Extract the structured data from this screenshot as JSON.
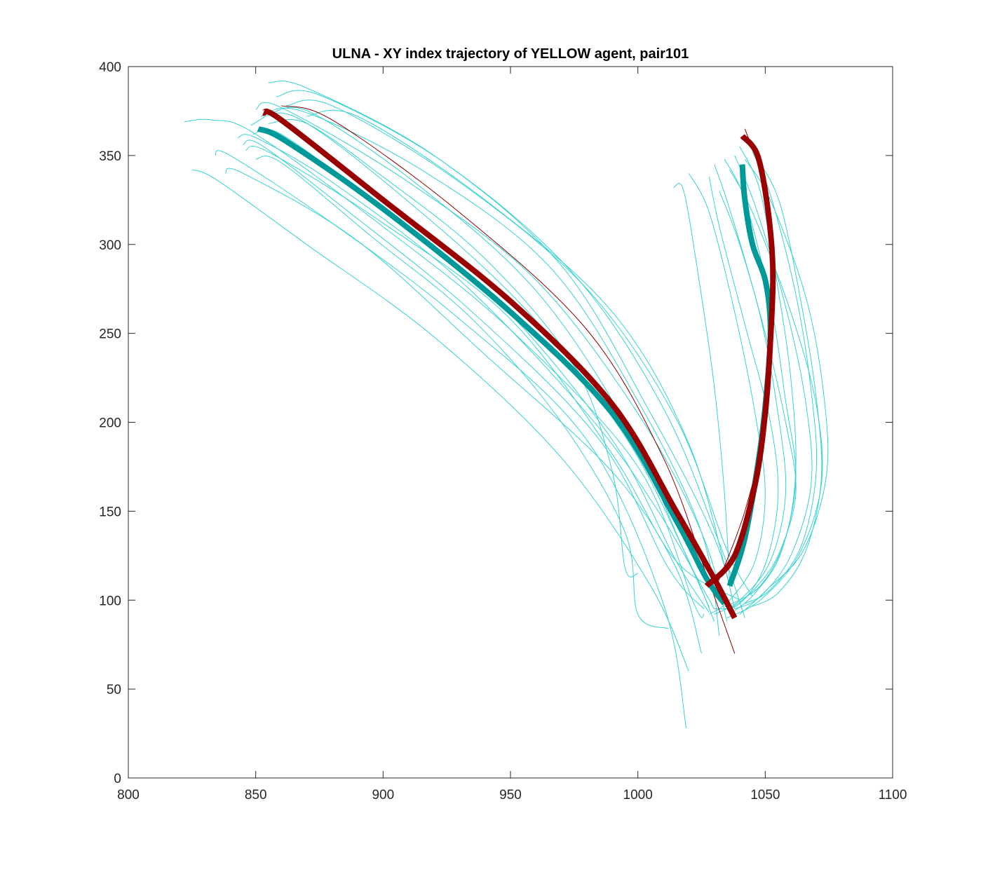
{
  "chart_data": {
    "type": "line",
    "title": "ULNA - XY index trajectory of YELLOW agent, pair101",
    "xlabel": "",
    "ylabel": "",
    "xlim": [
      800,
      1100
    ],
    "ylim": [
      0,
      400
    ],
    "xticks": [
      800,
      850,
      900,
      950,
      1000,
      1050,
      1100
    ],
    "yticks": [
      0,
      50,
      100,
      150,
      200,
      250,
      300,
      350,
      400
    ],
    "grid": false,
    "legend": "none",
    "colors": {
      "thin_cyan": "#38d1d1",
      "thin_red": "#8b0000",
      "mean_teal": "#009999",
      "mean_red": "#990000",
      "axis": "#262626"
    },
    "series": [
      {
        "style": "thin_cyan",
        "x": [
          822,
          833,
          850,
          900,
          950,
          1000,
          1022,
          1026
        ],
        "y": [
          369,
          370,
          362,
          310,
          252,
          175,
          98,
          92
        ]
      },
      {
        "style": "thin_cyan",
        "x": [
          825,
          835,
          870,
          920,
          970,
          1005,
          1020
        ],
        "y": [
          342,
          336,
          300,
          248,
          180,
          108,
          60
        ]
      },
      {
        "style": "thin_cyan",
        "x": [
          834,
          840,
          880,
          930,
          980,
          1010,
          1019
        ],
        "y": [
          350,
          350,
          312,
          258,
          190,
          98,
          28
        ]
      },
      {
        "style": "thin_cyan",
        "x": [
          838,
          845,
          890,
          940,
          990,
          1015,
          1025
        ],
        "y": [
          340,
          340,
          302,
          238,
          172,
          118,
          70
        ]
      },
      {
        "style": "thin_cyan",
        "x": [
          843,
          850,
          880,
          930,
          980,
          1008,
          1030
        ],
        "y": [
          360,
          360,
          335,
          280,
          205,
          150,
          95
        ]
      },
      {
        "style": "thin_cyan",
        "x": [
          846,
          855,
          900,
          950,
          990,
          1015,
          1040
        ],
        "y": [
          353,
          352,
          312,
          258,
          182,
          122,
          100
        ]
      },
      {
        "style": "thin_cyan",
        "x": [
          850,
          860,
          910,
          960,
          1000,
          1025,
          1035
        ],
        "y": [
          376,
          377,
          335,
          280,
          205,
          138,
          88
        ]
      },
      {
        "style": "thin_cyan",
        "x": [
          855,
          870,
          920,
          970,
          1005,
          1030,
          1038
        ],
        "y": [
          391,
          388,
          350,
          288,
          205,
          135,
          95
        ]
      },
      {
        "style": "thin_cyan",
        "x": [
          852,
          868,
          915,
          965,
          1000,
          1025,
          1032
        ],
        "y": [
          372,
          375,
          342,
          288,
          212,
          138,
          80
        ]
      },
      {
        "style": "thin_cyan",
        "x": [
          848,
          865,
          905,
          955,
          995,
          1020,
          1030
        ],
        "y": [
          367,
          372,
          330,
          265,
          192,
          122,
          88
        ]
      },
      {
        "style": "thin_cyan",
        "x": [
          858,
          875,
          925,
          975,
          1010,
          1032,
          1042
        ],
        "y": [
          383,
          384,
          345,
          283,
          208,
          132,
          90
        ]
      },
      {
        "style": "thin_cyan",
        "x": [
          849,
          860,
          895,
          945,
          990,
          1015,
          1028
        ],
        "y": [
          362,
          362,
          325,
          268,
          190,
          122,
          93
        ]
      },
      {
        "style": "thin_cyan",
        "x": [
          845,
          852,
          885,
          935,
          985,
          1012,
          1026
        ],
        "y": [
          356,
          356,
          320,
          262,
          190,
          118,
          95
        ]
      },
      {
        "style": "thin_cyan",
        "x": [
          862,
          880,
          930,
          980,
          1015,
          1035,
          1045
        ],
        "y": [
          378,
          378,
          335,
          275,
          202,
          128,
          102
        ]
      },
      {
        "style": "thin_cyan",
        "x": [
          870,
          890,
          940,
          990,
          1020,
          1036
        ],
        "y": [
          372,
          372,
          325,
          262,
          188,
          108
        ]
      },
      {
        "style": "thin_cyan",
        "x": [
          855,
          870,
          900,
          940,
          975,
          990,
          995,
          1000
        ],
        "y": [
          368,
          368,
          338,
          292,
          232,
          172,
          118,
          115
        ]
      },
      {
        "style": "thin_cyan",
        "x": [
          850,
          860,
          895,
          935,
          970,
          995,
          1000,
          1012
        ],
        "y": [
          348,
          346,
          305,
          258,
          200,
          138,
          92,
          84
        ]
      },
      {
        "style": "thin_cyan",
        "x": [
          856,
          872,
          915,
          960,
          995,
          1018,
          1028
        ],
        "y": [
          374,
          374,
          332,
          274,
          200,
          128,
          96
        ]
      },
      {
        "style": "thin_cyan",
        "x": [
          1032,
          1040,
          1050,
          1058,
          1062,
          1055,
          1045,
          1036
        ],
        "y": [
          330,
          300,
          250,
          200,
          160,
          125,
          105,
          95
        ]
      },
      {
        "style": "thin_cyan",
        "x": [
          1030,
          1036,
          1048,
          1055,
          1058,
          1052,
          1040,
          1030
        ],
        "y": [
          345,
          320,
          260,
          205,
          160,
          122,
          100,
          92
        ]
      },
      {
        "style": "thin_cyan",
        "x": [
          1038,
          1046,
          1058,
          1066,
          1068,
          1060,
          1048,
          1038
        ],
        "y": [
          350,
          322,
          265,
          210,
          165,
          125,
          102,
          95
        ]
      },
      {
        "style": "thin_cyan",
        "x": [
          1042,
          1052,
          1066,
          1073,
          1074,
          1065,
          1050,
          1040
        ],
        "y": [
          348,
          325,
          270,
          215,
          170,
          128,
          105,
          92
        ]
      },
      {
        "style": "thin_cyan",
        "x": [
          1036,
          1045,
          1060,
          1070,
          1072,
          1063,
          1048,
          1035
        ],
        "y": [
          342,
          318,
          262,
          210,
          165,
          125,
          100,
          90
        ]
      },
      {
        "style": "thin_cyan",
        "x": [
          1028,
          1032,
          1042,
          1052,
          1055,
          1050,
          1040,
          1030
        ],
        "y": [
          338,
          310,
          255,
          200,
          158,
          120,
          98,
          95
        ]
      },
      {
        "style": "thin_cyan",
        "x": [
          1040,
          1048,
          1055,
          1060,
          1062,
          1058,
          1048,
          1034
        ],
        "y": [
          355,
          330,
          275,
          225,
          175,
          135,
          108,
          96
        ]
      },
      {
        "style": "thin_cyan",
        "x": [
          1045,
          1052,
          1062,
          1068,
          1070,
          1064,
          1052,
          1042
        ],
        "y": [
          352,
          328,
          272,
          218,
          172,
          130,
          106,
          98
        ]
      },
      {
        "style": "thin_cyan",
        "x": [
          1014,
          1018,
          1024,
          1030,
          1034,
          1036
        ],
        "y": [
          332,
          330,
          280,
          220,
          160,
          110
        ]
      },
      {
        "style": "thin_cyan",
        "x": [
          1020,
          1028,
          1038,
          1046,
          1050,
          1046,
          1036,
          1028
        ],
        "y": [
          340,
          318,
          262,
          205,
          160,
          122,
          100,
          92
        ]
      },
      {
        "style": "thin_cyan",
        "x": [
          1034,
          1042,
          1052,
          1058,
          1062,
          1056,
          1046,
          1038
        ],
        "y": [
          348,
          325,
          268,
          212,
          168,
          126,
          104,
          94
        ]
      },
      {
        "style": "thin_cyan",
        "x": [
          1048,
          1056,
          1064,
          1070,
          1072,
          1066,
          1055,
          1044
        ],
        "y": [
          346,
          322,
          268,
          214,
          168,
          128,
          104,
          96
        ]
      },
      {
        "style": "thin_red",
        "x": [
          860,
          880,
          930,
          980,
          1010,
          1028,
          1038
        ],
        "y": [
          378,
          370,
          318,
          252,
          180,
          110,
          70
        ]
      },
      {
        "style": "thin_red",
        "x": [
          1042,
          1048,
          1052,
          1053,
          1050,
          1042,
          1030
        ],
        "y": [
          365,
          340,
          300,
          250,
          200,
          150,
          105
        ]
      },
      {
        "style": "mean_teal",
        "x": [
          851,
          862,
          900,
          950,
          990,
          1015,
          1027,
          1034
        ],
        "y": [
          365,
          358,
          320,
          262,
          205,
          145,
          112,
          98
        ]
      },
      {
        "style": "mean_teal",
        "x": [
          1036,
          1042,
          1048,
          1051,
          1052,
          1050,
          1045,
          1042,
          1041
        ],
        "y": [
          108,
          135,
          185,
          225,
          255,
          280,
          300,
          325,
          345
        ]
      },
      {
        "style": "mean_red",
        "x": [
          853,
          860,
          900,
          950,
          990,
          1015,
          1030,
          1038
        ],
        "y": [
          374,
          370,
          325,
          268,
          210,
          150,
          112,
          90
        ]
      },
      {
        "style": "mean_red",
        "x": [
          1027,
          1038,
          1046,
          1050,
          1052,
          1053,
          1051,
          1047,
          1041
        ],
        "y": [
          108,
          125,
          165,
          205,
          245,
          285,
          320,
          350,
          361
        ]
      }
    ]
  }
}
